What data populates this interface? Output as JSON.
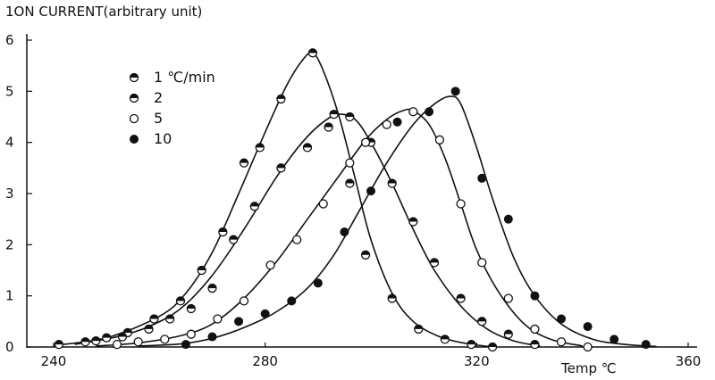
{
  "chart_data": {
    "type": "scatter",
    "ylabel": "1ON CURRENT(arbitrary unit)",
    "xlabel": "Temp ℃",
    "xlim": [
      240,
      360
    ],
    "ylim": [
      0,
      6
    ],
    "x_ticks": [
      "240",
      "280",
      "320",
      "360"
    ],
    "y_ticks": [
      "0",
      "1",
      "2",
      "3",
      "4",
      "5",
      "6"
    ],
    "grid": false,
    "legend_position": "top-left",
    "series": [
      {
        "name": "1 ℃/min",
        "marker": "half-filled",
        "points": [
          [
            241,
            0.05
          ],
          [
            246,
            0.1
          ],
          [
            250,
            0.18
          ],
          [
            254,
            0.28
          ],
          [
            259,
            0.55
          ],
          [
            264,
            0.9
          ],
          [
            268,
            1.5
          ],
          [
            272,
            2.25
          ],
          [
            276,
            3.6
          ],
          [
            279,
            3.9
          ],
          [
            283,
            4.85
          ],
          [
            289,
            5.75
          ],
          [
            293,
            4.55
          ],
          [
            296,
            3.2
          ],
          [
            299,
            1.8
          ],
          [
            304,
            0.95
          ],
          [
            309,
            0.35
          ],
          [
            314,
            0.15
          ],
          [
            319,
            0.05
          ],
          [
            323,
            0.0
          ]
        ],
        "curve": [
          [
            240,
            0.03
          ],
          [
            250,
            0.18
          ],
          [
            260,
            0.6
          ],
          [
            265,
            1.05
          ],
          [
            270,
            1.85
          ],
          [
            275,
            3.0
          ],
          [
            280,
            4.2
          ],
          [
            284,
            5.1
          ],
          [
            287,
            5.6
          ],
          [
            289,
            5.75
          ],
          [
            291,
            5.4
          ],
          [
            294,
            4.5
          ],
          [
            297,
            3.3
          ],
          [
            300,
            2.1
          ],
          [
            304,
            1.05
          ],
          [
            308,
            0.5
          ],
          [
            313,
            0.2
          ],
          [
            318,
            0.07
          ],
          [
            323,
            0.0
          ]
        ]
      },
      {
        "name": "2",
        "marker": "half-filled",
        "points": [
          [
            248,
            0.12
          ],
          [
            253,
            0.2
          ],
          [
            258,
            0.35
          ],
          [
            262,
            0.55
          ],
          [
            266,
            0.75
          ],
          [
            270,
            1.15
          ],
          [
            274,
            2.1
          ],
          [
            278,
            2.75
          ],
          [
            283,
            3.5
          ],
          [
            288,
            3.9
          ],
          [
            292,
            4.3
          ],
          [
            296,
            4.5
          ],
          [
            300,
            4.0
          ],
          [
            304,
            3.2
          ],
          [
            308,
            2.45
          ],
          [
            312,
            1.65
          ],
          [
            317,
            0.95
          ],
          [
            321,
            0.5
          ],
          [
            326,
            0.25
          ],
          [
            331,
            0.05
          ]
        ],
        "curve": [
          [
            244,
            0.05
          ],
          [
            252,
            0.2
          ],
          [
            258,
            0.4
          ],
          [
            264,
            0.75
          ],
          [
            270,
            1.4
          ],
          [
            276,
            2.3
          ],
          [
            282,
            3.3
          ],
          [
            287,
            4.0
          ],
          [
            291,
            4.4
          ],
          [
            294,
            4.55
          ],
          [
            297,
            4.45
          ],
          [
            300,
            4.0
          ],
          [
            304,
            3.2
          ],
          [
            308,
            2.3
          ],
          [
            312,
            1.5
          ],
          [
            317,
            0.8
          ],
          [
            322,
            0.35
          ],
          [
            327,
            0.12
          ],
          [
            332,
            0.02
          ]
        ]
      },
      {
        "name": "5",
        "marker": "open",
        "points": [
          [
            252,
            0.05
          ],
          [
            256,
            0.1
          ],
          [
            261,
            0.15
          ],
          [
            266,
            0.25
          ],
          [
            271,
            0.55
          ],
          [
            276,
            0.9
          ],
          [
            281,
            1.6
          ],
          [
            286,
            2.1
          ],
          [
            291,
            2.8
          ],
          [
            296,
            3.6
          ],
          [
            299,
            4.0
          ],
          [
            303,
            4.35
          ],
          [
            308,
            4.6
          ],
          [
            313,
            4.05
          ],
          [
            317,
            2.8
          ],
          [
            321,
            1.65
          ],
          [
            326,
            0.95
          ],
          [
            331,
            0.35
          ],
          [
            336,
            0.1
          ],
          [
            341,
            0.0
          ]
        ],
        "curve": [
          [
            248,
            0.02
          ],
          [
            256,
            0.08
          ],
          [
            264,
            0.22
          ],
          [
            270,
            0.45
          ],
          [
            276,
            0.95
          ],
          [
            282,
            1.65
          ],
          [
            288,
            2.5
          ],
          [
            294,
            3.35
          ],
          [
            299,
            4.05
          ],
          [
            303,
            4.45
          ],
          [
            306,
            4.62
          ],
          [
            308,
            4.62
          ],
          [
            311,
            4.35
          ],
          [
            314,
            3.7
          ],
          [
            317,
            2.8
          ],
          [
            320,
            1.9
          ],
          [
            324,
            1.1
          ],
          [
            329,
            0.45
          ],
          [
            334,
            0.15
          ],
          [
            340,
            0.02
          ]
        ]
      },
      {
        "name": "10",
        "marker": "filled",
        "points": [
          [
            265,
            0.05
          ],
          [
            270,
            0.2
          ],
          [
            275,
            0.5
          ],
          [
            280,
            0.65
          ],
          [
            285,
            0.9
          ],
          [
            290,
            1.25
          ],
          [
            295,
            2.25
          ],
          [
            300,
            3.05
          ],
          [
            305,
            4.4
          ],
          [
            311,
            4.6
          ],
          [
            316,
            5.0
          ],
          [
            321,
            3.3
          ],
          [
            326,
            2.5
          ],
          [
            331,
            1.0
          ],
          [
            336,
            0.55
          ],
          [
            341,
            0.4
          ],
          [
            346,
            0.15
          ],
          [
            352,
            0.05
          ]
        ],
        "curve": [
          [
            256,
            0.02
          ],
          [
            264,
            0.06
          ],
          [
            270,
            0.17
          ],
          [
            276,
            0.38
          ],
          [
            282,
            0.68
          ],
          [
            288,
            1.15
          ],
          [
            293,
            1.8
          ],
          [
            298,
            2.7
          ],
          [
            303,
            3.6
          ],
          [
            308,
            4.35
          ],
          [
            312,
            4.75
          ],
          [
            315,
            4.9
          ],
          [
            317,
            4.75
          ],
          [
            320,
            3.9
          ],
          [
            323,
            2.9
          ],
          [
            327,
            1.75
          ],
          [
            331,
            1.0
          ],
          [
            336,
            0.45
          ],
          [
            342,
            0.15
          ],
          [
            348,
            0.05
          ],
          [
            354,
            0.01
          ]
        ]
      }
    ]
  }
}
